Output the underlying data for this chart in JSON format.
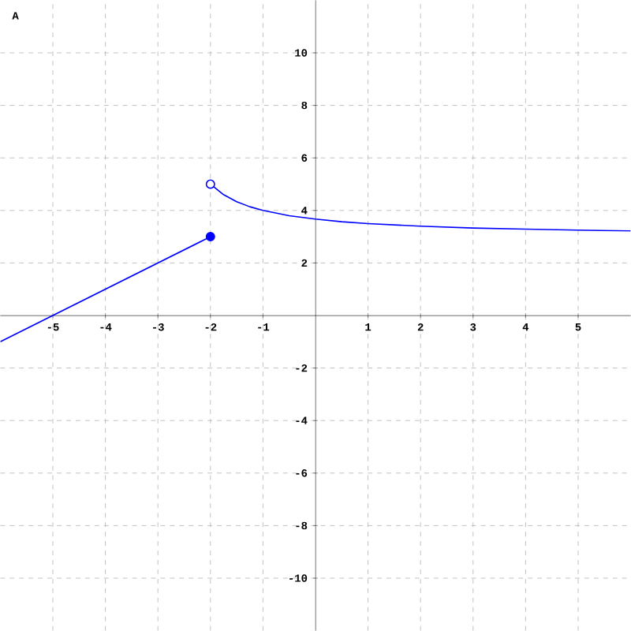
{
  "chart_data": {
    "type": "line",
    "annotations": [
      "A"
    ],
    "xlim": [
      -6,
      6
    ],
    "ylim": [
      -12,
      12
    ],
    "xticks": [
      -5,
      -4,
      -3,
      -2,
      -1,
      1,
      2,
      3,
      4,
      5
    ],
    "yticks": [
      -10,
      -8,
      -6,
      -4,
      -2,
      2,
      4,
      6,
      8,
      10
    ],
    "grid": true,
    "series": [
      {
        "color": "#0000ff",
        "x": [
          -6,
          -2
        ],
        "values": [
          -1,
          3
        ]
      },
      {
        "color": "#0000ff",
        "x": [
          -2,
          -1.75,
          -1.5,
          -1.25,
          -1,
          -0.5,
          0,
          0.5,
          1,
          2,
          3,
          4,
          5,
          6
        ],
        "values": [
          5,
          4.6,
          4.33,
          4.14,
          4,
          3.8,
          3.67,
          3.57,
          3.5,
          3.4,
          3.33,
          3.29,
          3.25,
          3.22
        ]
      },
      {
        "type": "scatter",
        "marker": "circle",
        "color": "#0000ff",
        "x": [
          -2
        ],
        "values": [
          3
        ]
      },
      {
        "type": "scatter",
        "marker": "circle",
        "color": "#0000ff",
        "x": [
          -2
        ],
        "values": [
          5
        ]
      }
    ]
  }
}
